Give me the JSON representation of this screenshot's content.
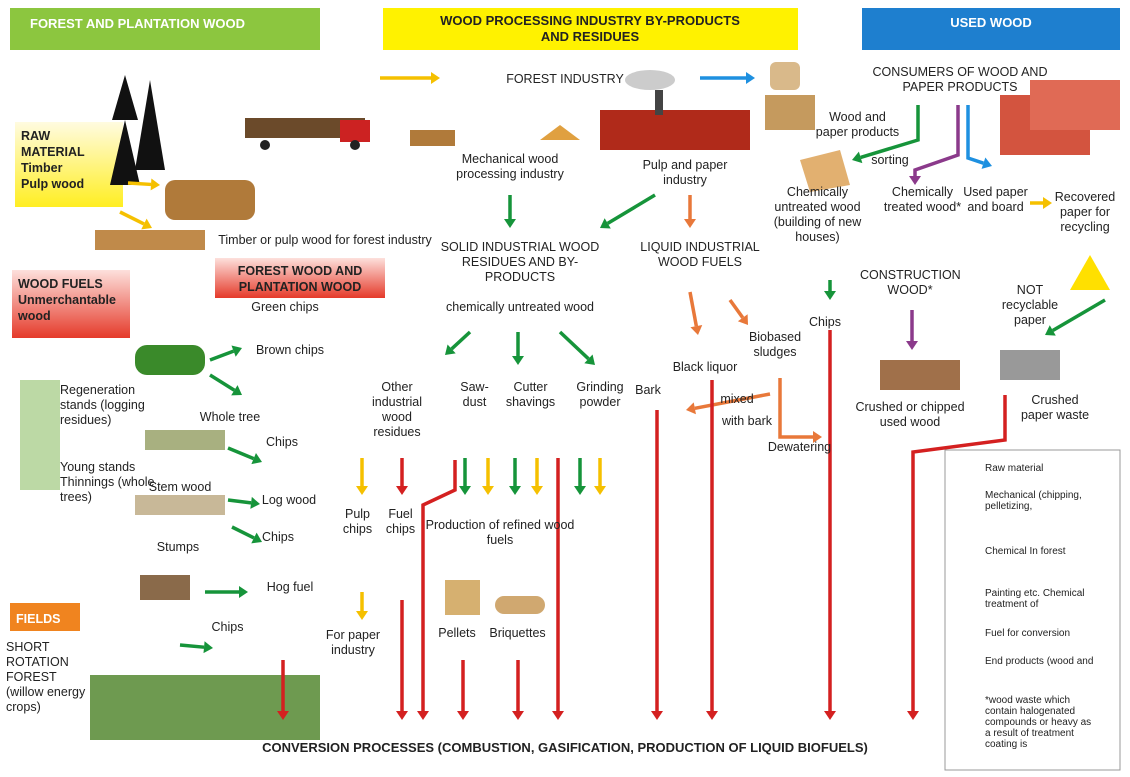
{
  "headers": {
    "forest": "FOREST AND PLANTATION WOOD",
    "industry": "WOOD PROCESSING INDUSTRY BY-PRODUCTS AND RESIDUES",
    "used": "USED WOOD"
  },
  "boxes": {
    "raw_title": "RAW MATERIAL",
    "raw_items": [
      "Timber",
      "Pulp wood"
    ],
    "fuels_title": "WOOD FUELS",
    "fuels_item": "Unmerchantable wood",
    "forest_wood": "FOREST WOOD AND PLANTATION WOOD",
    "fields": "FIELDS"
  },
  "labels": [
    "FOREST INDUSTRY",
    "CONSUMERS OF WOOD AND PAPER PRODUCTS",
    "Wood and paper products",
    "Mechanical wood processing industry",
    "Pulp and paper industry",
    "sorting",
    "Chemically untreated wood (building of new houses)",
    "Chemically treated wood*",
    "Used paper and board",
    "Recovered paper for recycling",
    "Timber or pulp wood for forest industry",
    "SOLID INDUSTRIAL WOOD RESIDUES AND BY-PRODUCTS",
    "chemically untreated wood",
    "LIQUID INDUSTRIAL WOOD FUELS",
    "CONSTRUCTION WOOD*",
    "NOT recyclable paper",
    "Green chips",
    "Chips",
    "Brown chips",
    "Biobased sludges",
    "Black liquor",
    "Other industrial wood residues",
    "Saw-dust",
    "Cutter shavings",
    "Grinding powder",
    "Bark",
    "mixed",
    "with bark",
    "Regeneration stands (logging residues)",
    "Whole tree",
    "Crushed or chipped used wood",
    "Crushed paper waste",
    "Chips",
    "Dewatering",
    "Young stands Thinnings (whole trees)",
    "Stem wood",
    "Log wood",
    "Chips",
    "Stumps",
    "Pulp chips",
    "Fuel chips",
    "Production of refined wood fuels",
    "For paper industry",
    "Hog fuel",
    "Chips",
    "Pellets",
    "Briquettes",
    "SHORT ROTATION FOREST (willow energy crops)"
  ],
  "footer": "CONVERSION PROCESSES (COMBUSTION, GASIFICATION, PRODUCTION OF LIQUID BIOFUELS)",
  "legend": {
    "items": [
      "Raw material",
      "Mechanical (chipping, pelletizing,",
      "Chemical In forest",
      "Painting etc. Chemical treatment of",
      "Fuel for conversion",
      "End products (wood and"
    ],
    "note": "*wood waste which contain halogenated compounds or heavy as a result of treatment coating is"
  }
}
